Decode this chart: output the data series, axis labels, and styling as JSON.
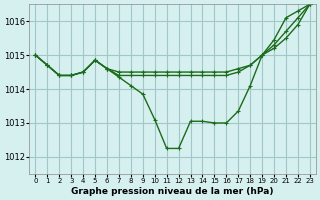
{
  "title": "Graphe pression niveau de la mer (hPa)",
  "bg_color": "#d6f0f0",
  "grid_color": "#a0c8c8",
  "line_color": "#1a6b1a",
  "x_ticks": [
    0,
    1,
    2,
    3,
    4,
    5,
    6,
    7,
    8,
    9,
    10,
    11,
    12,
    13,
    14,
    15,
    16,
    17,
    18,
    19,
    20,
    21,
    22,
    23
  ],
  "y_ticks": [
    1012,
    1013,
    1014,
    1015,
    1016
  ],
  "ylim": [
    1011.5,
    1016.5
  ],
  "xlim": [
    -0.5,
    23.5
  ],
  "line1": [
    1015.0,
    1014.7,
    1014.4,
    1014.4,
    1014.5,
    1014.85,
    1014.6,
    1014.35,
    1014.1,
    1013.85,
    1013.1,
    1012.25,
    1012.25,
    1013.05,
    1013.05,
    1013.0,
    1013.0,
    1013.35,
    1014.1,
    1015.0,
    1015.45,
    1016.1,
    1016.3,
    1016.5
  ],
  "line2": [
    1015.0,
    1014.7,
    1014.4,
    1014.4,
    1014.5,
    1014.85,
    1014.6,
    1014.4,
    1014.4,
    1014.4,
    1014.4,
    1014.4,
    1014.4,
    1014.4,
    1014.4,
    1014.4,
    1014.4,
    1014.5,
    1014.7,
    1015.0,
    1015.3,
    1015.7,
    1016.1,
    1016.5
  ],
  "line3": [
    1015.0,
    1014.7,
    1014.4,
    1014.4,
    1014.5,
    1014.85,
    1014.6,
    1014.5,
    1014.5,
    1014.5,
    1014.5,
    1014.5,
    1014.5,
    1014.5,
    1014.5,
    1014.5,
    1014.5,
    1014.6,
    1014.7,
    1015.0,
    1015.2,
    1015.5,
    1015.9,
    1016.5
  ]
}
